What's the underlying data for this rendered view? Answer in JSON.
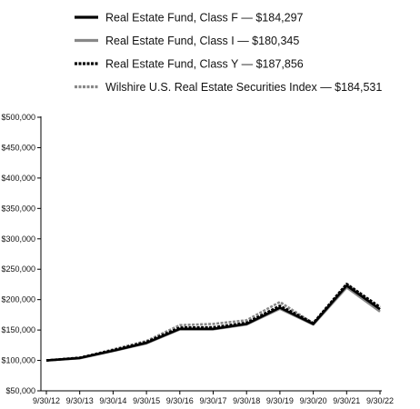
{
  "chart_data": {
    "type": "line",
    "title": "",
    "xlabel": "",
    "ylabel": "",
    "x": [
      "9/30/12",
      "9/30/13",
      "9/30/14",
      "9/30/15",
      "9/30/16",
      "9/30/17",
      "9/30/18",
      "9/30/19",
      "9/30/20",
      "9/30/21",
      "9/30/22"
    ],
    "ylim": [
      50000,
      500000
    ],
    "yticks": [
      50000,
      100000,
      150000,
      200000,
      250000,
      300000,
      350000,
      400000,
      450000,
      500000
    ],
    "ytick_labels": [
      "$50,000",
      "$100,000",
      "$150,000",
      "$200,000",
      "$250,000",
      "$300,000",
      "$350,000",
      "$400,000",
      "$450,000",
      "$500,000"
    ],
    "grid": false,
    "legend_position": "top",
    "series": [
      {
        "name": "Real Estate Fund, Class F — $184,297",
        "color": "#000000",
        "style": "solid",
        "values": [
          100000,
          104000,
          116000,
          129000,
          152000,
          152000,
          160000,
          187000,
          160000,
          223000,
          184297
        ]
      },
      {
        "name": "Real Estate Fund, Class I — $180,345",
        "color": "#888888",
        "style": "solid",
        "values": [
          100000,
          103500,
          115500,
          128000,
          151000,
          151000,
          159000,
          185000,
          159000,
          220000,
          180345
        ]
      },
      {
        "name": "Real Estate Fund, Class Y — $187,856",
        "color": "#000000",
        "style": "dotted",
        "values": [
          100000,
          104500,
          117000,
          130500,
          154000,
          154500,
          162000,
          190000,
          161500,
          226000,
          187856
        ]
      },
      {
        "name": "Wilshire U.S. Real Estate Securities Index — $184,531",
        "color": "#888888",
        "style": "dotted",
        "values": [
          100000,
          104000,
          118000,
          132000,
          158000,
          160000,
          166000,
          196000,
          161000,
          225000,
          184531
        ]
      }
    ]
  }
}
